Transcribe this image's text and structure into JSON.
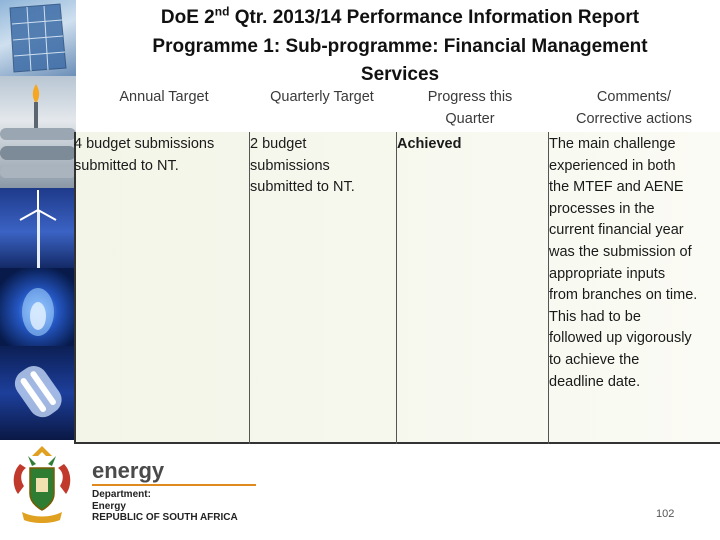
{
  "title": {
    "line1_prefix": "DoE 2",
    "line1_sup": "nd",
    "line1_suffix": " Qtr. 2013/14 Performance Information Report",
    "line2": "Programme 1: Sub-programme: Financial Management",
    "line3": "Services"
  },
  "table": {
    "headers": {
      "annual_target": "Annual Target",
      "quarterly_target": "Quarterly Target",
      "progress_line1": "Progress this",
      "progress_line2": "Quarter",
      "comments_line1": "Comments/",
      "comments_line2": "Corrective actions"
    },
    "row": {
      "annual_target": [
        "4 budget submissions",
        "submitted to NT."
      ],
      "quarterly_target": [
        "2 budget",
        "submissions",
        "submitted to NT."
      ],
      "progress": "Achieved",
      "comments": [
        "The main challenge",
        "experienced in both",
        "the MTEF and AENE",
        "processes in the",
        "current financial year",
        "was the submission of",
        "appropriate inputs",
        "from branches on time.",
        "This had to be",
        "followed up vigorously",
        "to achieve the",
        "deadline date."
      ]
    }
  },
  "footer": {
    "logo_word": "energy",
    "logo_lines": [
      "Department:",
      "Energy",
      "REPUBLIC OF SOUTH AFRICA"
    ],
    "page_number": "102"
  }
}
